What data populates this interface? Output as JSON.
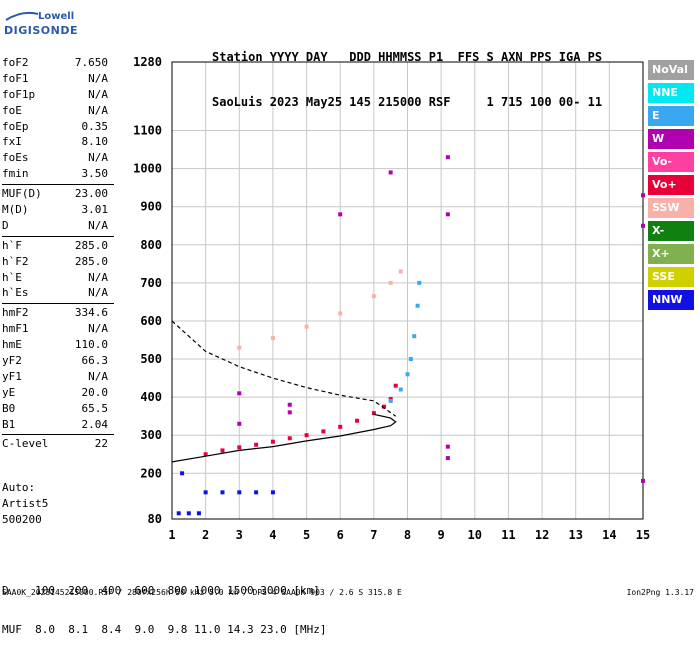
{
  "logo": {
    "line1": "Lowell",
    "line2": "DIGISONDE"
  },
  "header": {
    "line1": "Station YYYY DAY   DDD HHMMSS P1  FFS S AXN PPS IGA PS",
    "line2": "SaoLuis 2023 May25 145 215000 RSF     1 715 100 00- 11"
  },
  "params": [
    {
      "name": "foF2",
      "value": "7.650"
    },
    {
      "name": "foF1",
      "value": "N/A"
    },
    {
      "name": "foF1p",
      "value": "N/A"
    },
    {
      "name": "foE",
      "value": "N/A"
    },
    {
      "name": "foEp",
      "value": "0.35"
    },
    {
      "name": "fxI",
      "value": "8.10"
    },
    {
      "name": "foEs",
      "value": "N/A"
    },
    {
      "name": "fmin",
      "value": "3.50"
    },
    {
      "sep": true
    },
    {
      "name": "MUF(D)",
      "value": "23.00"
    },
    {
      "name": "M(D)",
      "value": "3.01"
    },
    {
      "name": "D",
      "value": "N/A"
    },
    {
      "sep": true
    },
    {
      "name": "h`F",
      "value": "285.0"
    },
    {
      "name": "h`F2",
      "value": "285.0"
    },
    {
      "name": "h`E",
      "value": "N/A"
    },
    {
      "name": "h`Es",
      "value": "N/A"
    },
    {
      "sep": true
    },
    {
      "name": "hmF2",
      "value": "334.6"
    },
    {
      "name": "hmF1",
      "value": "N/A"
    },
    {
      "name": "hmE",
      "value": "110.0"
    },
    {
      "name": "yF2",
      "value": "66.3"
    },
    {
      "name": "yF1",
      "value": "N/A"
    },
    {
      "name": "yE",
      "value": "20.0"
    },
    {
      "name": "B0",
      "value": "65.5"
    },
    {
      "name": "B1",
      "value": "2.04"
    },
    {
      "sep": true
    },
    {
      "name": "C-level",
      "value": "22"
    }
  ],
  "auto": {
    "line1": "Auto:",
    "line2": "Artist5",
    "line3": "500200"
  },
  "dmuf": {
    "d_row": "D    100  200  400  600  800 1000 1500 3000 [km]",
    "muf_row": "MUF  8.0  8.1  8.4  9.0  9.8 11.0 14.3 23.0 [MHz]"
  },
  "footer": "SAA0K_2023145215000.RSF / 280fx256h 50 kHz 5.0 km / DPS-4 SAA0K 903 / 2.6 S 315.8 E",
  "version": "Ion2Png 1.3.17",
  "legend": [
    {
      "label": "NoVal",
      "color": "#a0a0a0"
    },
    {
      "label": "NNE",
      "color": "#00e8f0"
    },
    {
      "label": "E",
      "color": "#3aa8f0"
    },
    {
      "label": "W",
      "color": "#b000b0"
    },
    {
      "label": "Vo-",
      "color": "#ff40a0"
    },
    {
      "label": "Vo+",
      "color": "#e8003a"
    },
    {
      "label": "SSW",
      "color": "#f8b0a8"
    },
    {
      "label": "X-",
      "color": "#108010"
    },
    {
      "label": "X+",
      "color": "#80b050"
    },
    {
      "label": "SSE",
      "color": "#d0d000"
    },
    {
      "label": "NNW",
      "color": "#1010e0"
    }
  ],
  "chart_data": {
    "type": "scatter",
    "xlabel": "",
    "ylabel": "",
    "xlim": [
      1,
      15
    ],
    "ylim": [
      80,
      1280
    ],
    "x_ticks": [
      1,
      2,
      3,
      4,
      5,
      6,
      7,
      8,
      9,
      10,
      11,
      12,
      13,
      14,
      15
    ],
    "y_ticks": [
      80,
      200,
      300,
      400,
      500,
      600,
      700,
      800,
      900,
      1000,
      1100,
      1280
    ],
    "grid": true,
    "series": [
      {
        "name": "O-trace",
        "color": "#e8003a",
        "points": [
          [
            2.0,
            250
          ],
          [
            2.5,
            260
          ],
          [
            3.0,
            268
          ],
          [
            3.5,
            275
          ],
          [
            4.0,
            283
          ],
          [
            4.5,
            292
          ],
          [
            5.0,
            300
          ],
          [
            5.5,
            310
          ],
          [
            6.0,
            322
          ],
          [
            6.5,
            338
          ],
          [
            7.0,
            358
          ],
          [
            7.3,
            375
          ],
          [
            7.5,
            395
          ],
          [
            7.65,
            430
          ]
        ]
      },
      {
        "name": "X-trace",
        "color": "#3aa8f0",
        "points": [
          [
            7.5,
            390
          ],
          [
            7.8,
            420
          ],
          [
            8.0,
            460
          ],
          [
            8.1,
            500
          ],
          [
            8.2,
            560
          ],
          [
            8.3,
            640
          ],
          [
            8.35,
            700
          ]
        ]
      },
      {
        "name": "2F-trace",
        "color": "#f8b0a8",
        "points": [
          [
            3.0,
            530
          ],
          [
            4.0,
            555
          ],
          [
            5.0,
            585
          ],
          [
            6.0,
            620
          ],
          [
            7.0,
            665
          ],
          [
            7.5,
            700
          ],
          [
            7.8,
            730
          ]
        ]
      },
      {
        "name": "profile-solid",
        "color": "#000000",
        "line": true,
        "points": [
          [
            1.0,
            230
          ],
          [
            2.0,
            245
          ],
          [
            3.0,
            260
          ],
          [
            4.0,
            270
          ],
          [
            5.0,
            285
          ],
          [
            6.0,
            298
          ],
          [
            7.0,
            315
          ],
          [
            7.5,
            325
          ],
          [
            7.65,
            335
          ],
          [
            7.5,
            345
          ],
          [
            7.0,
            355
          ]
        ]
      },
      {
        "name": "profile-dashed",
        "color": "#000000",
        "line": true,
        "dashed": true,
        "points": [
          [
            1.0,
            600
          ],
          [
            1.5,
            560
          ],
          [
            2.0,
            520
          ],
          [
            3.0,
            480
          ],
          [
            4.0,
            450
          ],
          [
            5.0,
            425
          ],
          [
            6.0,
            405
          ],
          [
            7.0,
            390
          ],
          [
            7.65,
            350
          ]
        ]
      },
      {
        "name": "low-echoes",
        "color": "#1010e0",
        "points": [
          [
            1.2,
            95
          ],
          [
            1.5,
            95
          ],
          [
            1.8,
            95
          ],
          [
            2.0,
            150
          ],
          [
            2.5,
            150
          ],
          [
            3.0,
            150
          ],
          [
            3.5,
            150
          ],
          [
            4.0,
            150
          ],
          [
            1.3,
            200
          ]
        ]
      },
      {
        "name": "spread-F",
        "color": "#b000b0",
        "points": [
          [
            4.5,
            380
          ],
          [
            4.5,
            360
          ],
          [
            3.0,
            330
          ],
          [
            3.0,
            410
          ],
          [
            9.2,
            1030
          ],
          [
            9.2,
            270
          ],
          [
            9.2,
            240
          ],
          [
            9.2,
            880
          ],
          [
            15,
            930
          ],
          [
            15,
            850
          ],
          [
            15,
            180
          ],
          [
            6.0,
            880
          ],
          [
            7.5,
            990
          ]
        ]
      }
    ]
  }
}
